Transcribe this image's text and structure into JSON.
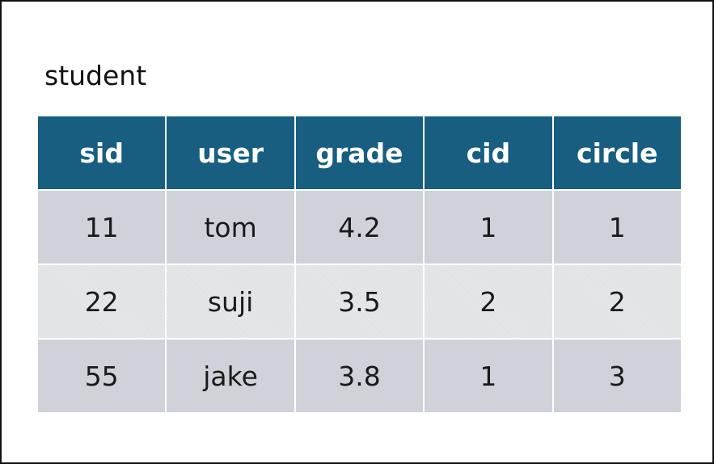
{
  "title": "student",
  "columns": [
    "sid",
    "user",
    "grade",
    "cid",
    "circle"
  ],
  "rows": [
    [
      "11",
      "tom",
      "4.2",
      "1",
      "1"
    ],
    [
      "22",
      "suji",
      "3.5",
      "2",
      "2"
    ],
    [
      "55",
      "jake",
      "3.8",
      "1",
      "3"
    ]
  ],
  "colors": {
    "header_bg": "#175e80",
    "header_text": "#ffffff",
    "row_bg": "#cfd3d9",
    "row_alt_bg": "#e6e7e9",
    "border": "#111111"
  }
}
